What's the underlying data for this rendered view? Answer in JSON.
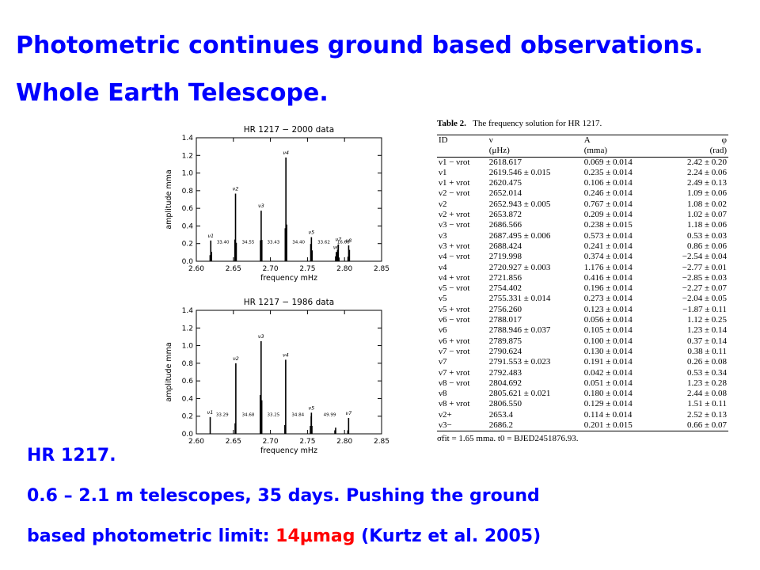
{
  "slide": {
    "title_line1": "Photometric continues ground based observations.",
    "title_line2": "Whole Earth Telescope.",
    "caption_line1": "HR 1217.",
    "caption_line2": "0.6 – 2.1 m telescopes, 35 days. Pushing the ground",
    "caption_line3_pre": "based photometric limit: ",
    "caption_line3_red": "14μmag",
    "caption_line3_post": " (Kurtz et al. 2005)"
  },
  "colors": {
    "title": "#0000ff",
    "highlight": "#ff0000",
    "plot_ink": "#000000"
  },
  "chart_data": [
    {
      "type": "bar",
      "title": "HR 1217 − 2000 data",
      "xlabel": "frequency mHz",
      "ylabel": "amplitude mma",
      "xlim": [
        2.6,
        2.85
      ],
      "ylim": [
        0.0,
        1.4
      ],
      "xticks": [
        "2.60",
        "2.65",
        "2.70",
        "2.75",
        "2.80",
        "2.85"
      ],
      "yticks": [
        "0.0",
        "0.2",
        "0.4",
        "0.6",
        "0.8",
        "1.0",
        "1.2",
        "1.4"
      ],
      "x": [
        2.6186,
        2.6195,
        2.6205,
        2.652,
        2.6529,
        2.6539,
        2.6866,
        2.6875,
        2.6884,
        2.72,
        2.7209,
        2.7219,
        2.7544,
        2.7553,
        2.7563,
        2.788,
        2.7889,
        2.7899,
        2.7906,
        2.7916,
        2.7925,
        2.8047,
        2.8056,
        2.8066
      ],
      "values": [
        0.069,
        0.235,
        0.106,
        0.246,
        0.767,
        0.209,
        0.238,
        0.573,
        0.241,
        0.374,
        1.176,
        0.416,
        0.196,
        0.273,
        0.123,
        0.056,
        0.105,
        0.1,
        0.13,
        0.191,
        0.042,
        0.051,
        0.18,
        0.129
      ],
      "peak_labels": [
        {
          "text": "ν1",
          "x": 2.6195,
          "y": 0.235
        },
        {
          "text": "ν2",
          "x": 2.6529,
          "y": 0.767
        },
        {
          "text": "ν3",
          "x": 2.6875,
          "y": 0.573
        },
        {
          "text": "ν4",
          "x": 2.7209,
          "y": 1.176
        },
        {
          "text": "ν5",
          "x": 2.7553,
          "y": 0.273
        },
        {
          "text": "ν6",
          "x": 2.7889,
          "y": 0.105
        },
        {
          "text": "ν7",
          "x": 2.7916,
          "y": 0.191
        },
        {
          "text": "ν8",
          "x": 2.8056,
          "y": 0.18
        }
      ],
      "spacing_labels": [
        {
          "text": "33.40",
          "x": 2.636
        },
        {
          "text": "34.55",
          "x": 2.67
        },
        {
          "text": "33.43",
          "x": 2.704
        },
        {
          "text": "34.40",
          "x": 2.738
        },
        {
          "text": "33.62",
          "x": 2.772
        },
        {
          "text": "16.66",
          "x": 2.7985
        }
      ]
    },
    {
      "type": "bar",
      "title": "HR 1217 − 1986 data",
      "xlabel": "frequency mHz",
      "ylabel": "amplitude mma",
      "xlim": [
        2.6,
        2.85
      ],
      "ylim": [
        0.0,
        1.4
      ],
      "xticks": [
        "2.60",
        "2.65",
        "2.70",
        "2.75",
        "2.80",
        "2.85"
      ],
      "yticks": [
        "0.0",
        "0.2",
        "0.4",
        "0.6",
        "0.8",
        "1.0",
        "1.2",
        "1.4"
      ],
      "x": [
        2.6187,
        2.6524,
        2.6533,
        2.6863,
        2.6874,
        2.6883,
        2.7195,
        2.7206,
        2.754,
        2.755,
        2.7553,
        2.756,
        2.787,
        2.788,
        2.8045,
        2.8055
      ],
      "values": [
        0.19,
        0.12,
        0.8,
        0.44,
        1.05,
        0.38,
        0.1,
        0.84,
        0.09,
        0.2,
        0.24,
        0.09,
        0.04,
        0.07,
        0.04,
        0.18
      ],
      "peak_labels": [
        {
          "text": "ν1",
          "x": 2.6187,
          "y": 0.19
        },
        {
          "text": "ν2",
          "x": 2.6533,
          "y": 0.8
        },
        {
          "text": "ν3",
          "x": 2.6874,
          "y": 1.05
        },
        {
          "text": "ν4",
          "x": 2.7206,
          "y": 0.84
        },
        {
          "text": "ν5",
          "x": 2.7553,
          "y": 0.24
        },
        {
          "text": "ν7",
          "x": 2.8055,
          "y": 0.18
        }
      ],
      "spacing_labels": [
        {
          "text": "33.29",
          "x": 2.635
        },
        {
          "text": "34.68",
          "x": 2.67
        },
        {
          "text": "33.25",
          "x": 2.704
        },
        {
          "text": "34.84",
          "x": 2.737
        },
        {
          "text": "49.99",
          "x": 2.78
        }
      ]
    }
  ],
  "table": {
    "label": "Table 2.",
    "caption": "The frequency solution for HR 1217.",
    "headers": [
      "ID",
      "ν",
      "A",
      "φ"
    ],
    "units": [
      "",
      "(μHz)",
      "(mma)",
      "(rad)"
    ],
    "rows": [
      [
        "ν1 − νrot",
        "2618.617",
        "0.069 ± 0.014",
        "2.42 ± 0.20"
      ],
      [
        "ν1",
        "2619.546 ± 0.015",
        "0.235 ± 0.014",
        "2.24 ± 0.06"
      ],
      [
        "ν1 + νrot",
        "2620.475",
        "0.106 ± 0.014",
        "2.49 ± 0.13"
      ],
      [
        "ν2 − νrot",
        "2652.014",
        "0.246 ± 0.014",
        "1.09 ± 0.06"
      ],
      [
        "ν2",
        "2652.943 ± 0.005",
        "0.767 ± 0.014",
        "1.08 ± 0.02"
      ],
      [
        "ν2 + νrot",
        "2653.872",
        "0.209 ± 0.014",
        "1.02 ± 0.07"
      ],
      [
        "ν3 − νrot",
        "2686.566",
        "0.238 ± 0.015",
        "1.18 ± 0.06"
      ],
      [
        "ν3",
        "2687.495 ± 0.006",
        "0.573 ± 0.014",
        "0.53 ± 0.03"
      ],
      [
        "ν3 + νrot",
        "2688.424",
        "0.241 ± 0.014",
        "0.86 ± 0.06"
      ],
      [
        "ν4 − νrot",
        "2719.998",
        "0.374 ± 0.014",
        "−2.54 ± 0.04"
      ],
      [
        "ν4",
        "2720.927 ± 0.003",
        "1.176 ± 0.014",
        "−2.77 ± 0.01"
      ],
      [
        "ν4 + νrot",
        "2721.856",
        "0.416 ± 0.014",
        "−2.85 ± 0.03"
      ],
      [
        "ν5 − νrot",
        "2754.402",
        "0.196 ± 0.014",
        "−2.27 ± 0.07"
      ],
      [
        "ν5",
        "2755.331 ± 0.014",
        "0.273 ± 0.014",
        "−2.04 ± 0.05"
      ],
      [
        "ν5 + νrot",
        "2756.260",
        "0.123 ± 0.014",
        "−1.87 ± 0.11"
      ],
      [
        "ν6 − νrot",
        "2788.017",
        "0.056 ± 0.014",
        "1.12 ± 0.25"
      ],
      [
        "ν6",
        "2788.946 ± 0.037",
        "0.105 ± 0.014",
        "1.23 ± 0.14"
      ],
      [
        "ν6 + νrot",
        "2789.875",
        "0.100 ± 0.014",
        "0.37 ± 0.14"
      ],
      [
        "ν7 − νrot",
        "2790.624",
        "0.130 ± 0.014",
        "0.38 ± 0.11"
      ],
      [
        "ν7",
        "2791.553 ± 0.023",
        "0.191 ± 0.014",
        "0.26 ± 0.08"
      ],
      [
        "ν7 + νrot",
        "2792.483",
        "0.042 ± 0.014",
        "0.53 ± 0.34"
      ],
      [
        "ν8 − νrot",
        "2804.692",
        "0.051 ± 0.014",
        "1.23 ± 0.28"
      ],
      [
        "ν8",
        "2805.621 ± 0.021",
        "0.180 ± 0.014",
        "2.44 ± 0.08"
      ],
      [
        "ν8 + νrot",
        "2806.550",
        "0.129 ± 0.014",
        "1.51 ± 0.11"
      ],
      [
        "ν2+",
        "2653.4",
        "0.114 ± 0.014",
        "2.52 ± 0.13"
      ],
      [
        "ν3−",
        "2686.2",
        "0.201 ± 0.015",
        "0.66 ± 0.07"
      ]
    ],
    "footnote": "σfit = 1.65 mma. t0 = BJED2451876.93."
  }
}
